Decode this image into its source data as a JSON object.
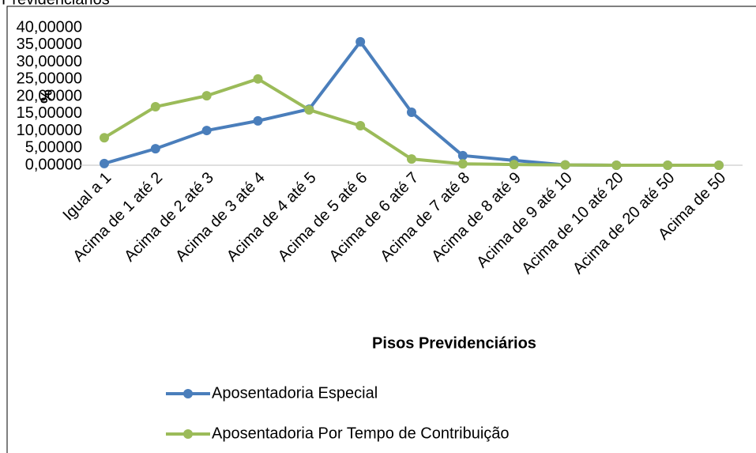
{
  "chart_data": {
    "type": "line",
    "title": "Previdenciários",
    "xlabel": "Pisos Previdenciários",
    "ylabel": "%",
    "categories": [
      "Igual a 1",
      "Acima de 1 até 2",
      "Acima de 2 até 3",
      "Acima de 3 até 4",
      "Acima de 4 até 5",
      "Acima de 5 até 6",
      "Acima de 6 até 7",
      "Acima de 7 até 8",
      "Acima de 8 até 9",
      "Acima de 9 até 10",
      "Acima de 10 até 20",
      "Acima de 20 até 50",
      "Acima de 50"
    ],
    "series": [
      {
        "name": "Aposentadoria Especial",
        "color": "#4a7ebb",
        "values": [
          0.5,
          4.8,
          10.1,
          12.9,
          16.3,
          35.9,
          15.4,
          2.8,
          1.4,
          0.1,
          0,
          0,
          0
        ]
      },
      {
        "name": "Aposentadoria Por Tempo de Contribuição",
        "color": "#9bbb59",
        "values": [
          8.0,
          17.0,
          20.2,
          25.1,
          16.1,
          11.5,
          1.8,
          0.4,
          0.2,
          0.1,
          0,
          0,
          0
        ]
      }
    ],
    "ylim": [
      0,
      40
    ],
    "yticks": [
      {
        "value": 0,
        "label": "0,00000"
      },
      {
        "value": 5,
        "label": "5,00000"
      },
      {
        "value": 10,
        "label": "10,00000"
      },
      {
        "value": 15,
        "label": "15,00000"
      },
      {
        "value": 20,
        "label": "20,00000"
      },
      {
        "value": 25,
        "label": "25,00000"
      },
      {
        "value": 30,
        "label": "30,00000"
      },
      {
        "value": 35,
        "label": "35,00000"
      },
      {
        "value": 40,
        "label": "40,00000"
      }
    ],
    "legend": "bottom-left"
  }
}
